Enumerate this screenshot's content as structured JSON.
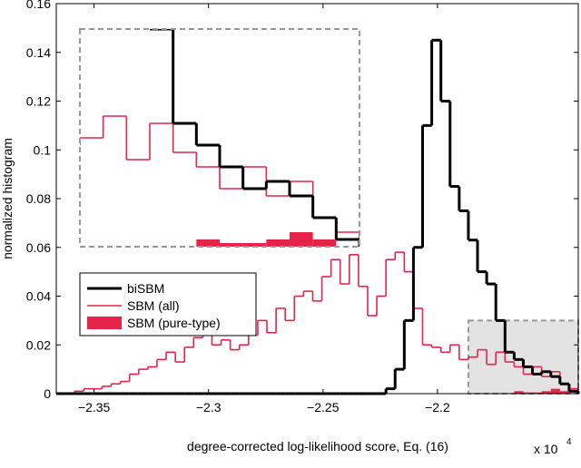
{
  "chart_data": {
    "type": "histogram",
    "xlabel": "degree-corrected log-likelihood score, Eq. (16)",
    "ylabel": "normalized histogram",
    "x_multiplier": "x 10",
    "x_multiplier_exponent": "4",
    "bins": [
      -2.3665,
      -2.3625,
      -2.3585,
      -2.3545,
      -2.3505,
      -2.3465,
      -2.3425,
      -2.3385,
      -2.3345,
      -2.3305,
      -2.3265,
      -2.3225,
      -2.3185,
      -2.3145,
      -2.3105,
      -2.3065,
      -2.3025,
      -2.2985,
      -2.2945,
      -2.2905,
      -2.2865,
      -2.2825,
      -2.2785,
      -2.2745,
      -2.2705,
      -2.2665,
      -2.2625,
      -2.2585,
      -2.2545,
      -2.2505,
      -2.2465,
      -2.2425,
      -2.2385,
      -2.2345,
      -2.2305,
      -2.2265,
      -2.2225,
      -2.2185,
      -2.2145,
      -2.2105,
      -2.2065,
      -2.2025,
      -2.1985,
      -2.1945,
      -2.1905,
      -2.1865,
      -2.1825,
      -2.1785,
      -2.1745,
      -2.1705,
      -2.1665,
      -2.1625,
      -2.1585,
      -2.1545,
      -2.1505,
      -2.1465,
      -2.1425,
      -2.1385
    ],
    "series": [
      {
        "name": "biSBM",
        "color": "#000000",
        "style": "step",
        "values": [
          0,
          0,
          0,
          0,
          0,
          0,
          0,
          0,
          0,
          0,
          0,
          0,
          0,
          0,
          0,
          0,
          0,
          0,
          0,
          0,
          0,
          0,
          0,
          0,
          0,
          0,
          0,
          0,
          0,
          0,
          0,
          0,
          0,
          0,
          0,
          0,
          0.002,
          0.01,
          0.03,
          0.06,
          0.11,
          0.145,
          0.12,
          0.085,
          0.075,
          0.063,
          0.05,
          0.045,
          0.03,
          0.017,
          0.014,
          0.011,
          0.008,
          0.009,
          0.007,
          0.004,
          0.001
        ]
      },
      {
        "name": "SBM (all)",
        "color": "#e8234a",
        "style": "step",
        "values": [
          0,
          0,
          0.001,
          0.002,
          0.002,
          0.003,
          0.004,
          0.005,
          0.008,
          0.01,
          0.011,
          0.014,
          0.017,
          0.013,
          0.019,
          0.023,
          0.025,
          0.02,
          0.022,
          0.018,
          0.02,
          0.024,
          0.03,
          0.025,
          0.035,
          0.03,
          0.04,
          0.042,
          0.038,
          0.048,
          0.055,
          0.045,
          0.057,
          0.044,
          0.032,
          0.04,
          0.055,
          0.058,
          0.05,
          0.035,
          0.02,
          0.019,
          0.017,
          0.02,
          0.014,
          0.015,
          0.018,
          0.012,
          0.017,
          0.013,
          0.011,
          0.008,
          0.011,
          0.007,
          0.009,
          0.004,
          0.002
        ]
      },
      {
        "name": "SBM (pure-type)",
        "color": "#e8234a",
        "style": "filled",
        "values": [
          0,
          0,
          0,
          0,
          0,
          0,
          0,
          0,
          0,
          0,
          0,
          0,
          0,
          0,
          0,
          0,
          0,
          0,
          0,
          0,
          0,
          0,
          0,
          0,
          0,
          0,
          0,
          0,
          0,
          0,
          0,
          0,
          0,
          0,
          0,
          0,
          0,
          0,
          0,
          0,
          0,
          0,
          0,
          0,
          0,
          0,
          0,
          0,
          0,
          0,
          0.001,
          0.0005,
          0.0005,
          0.001,
          0.002,
          0.001,
          0
        ]
      }
    ],
    "xlim": [
      -2.3665,
      -2.1385
    ],
    "ylim": [
      0,
      0.16
    ],
    "xticks": [
      {
        "value": -2.35,
        "label": "−2.35"
      },
      {
        "value": -2.3,
        "label": "−2.3"
      },
      {
        "value": -2.25,
        "label": "−2.25"
      },
      {
        "value": -2.2,
        "label": "−2.2"
      }
    ],
    "yticks": [
      0,
      0.02,
      0.04,
      0.06,
      0.08,
      0.1,
      0.12,
      0.14,
      0.16
    ],
    "inset_xlim": [
      -2.1865,
      -2.1385
    ],
    "inset_ylim": [
      0,
      0.03
    ],
    "legend": "lower-left"
  }
}
